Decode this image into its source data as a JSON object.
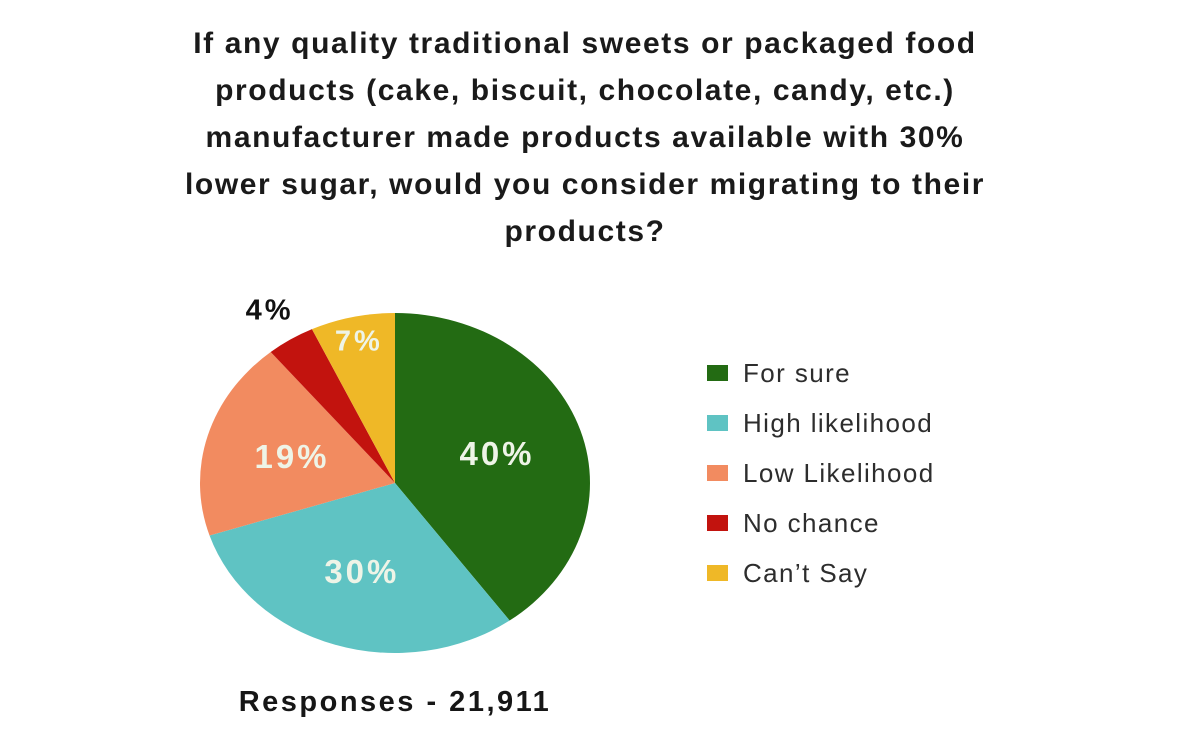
{
  "page": {
    "background": "#ffffff"
  },
  "title": {
    "full_text": "If any quality traditional sweets or packaged food products (cake, biscuit, chocolate, candy, etc.) manufacturer made products available with 30% lower sugar, would you consider migrating to their products?",
    "lines": [
      "If any quality traditional sweets or packaged food",
      "products (cake, biscuit, chocolate, candy, etc.)",
      "manufacturer made products available with 30%",
      "lower sugar, would you consider migrating to their",
      "products?"
    ]
  },
  "chart_data": {
    "type": "pie",
    "title": "If any quality traditional sweets or packaged food products (cake, biscuit, chocolate, candy, etc.) manufacturer made products available with 30% lower sugar, would you consider migrating to their products?",
    "categories": [
      "For sure",
      "High likelihood",
      "Low Likelihood",
      "No chance",
      "Can't Say"
    ],
    "values": [
      40,
      30,
      19,
      4,
      7
    ],
    "slice_labels": [
      "40%",
      "30%",
      "19%",
      "4%",
      "7%"
    ],
    "colors": [
      "#236b13",
      "#5fc3c3",
      "#f28b60",
      "#c2130e",
      "#efb827"
    ],
    "start_angle_deg": 0,
    "direction": "clockwise",
    "legend_position": "right",
    "inside_label_color": "#eef4e7",
    "outside_label_color": "#111111",
    "total_label": "Responses - 21,911",
    "responses": "21,911"
  },
  "legend": {
    "items": [
      {
        "label": "For sure"
      },
      {
        "label": "High likelihood"
      },
      {
        "label": "Low Likelihood"
      },
      {
        "label": "No chance"
      },
      {
        "label": "Can’t Say"
      }
    ]
  },
  "footer": {
    "responses_text": "Responses - 21,911"
  }
}
